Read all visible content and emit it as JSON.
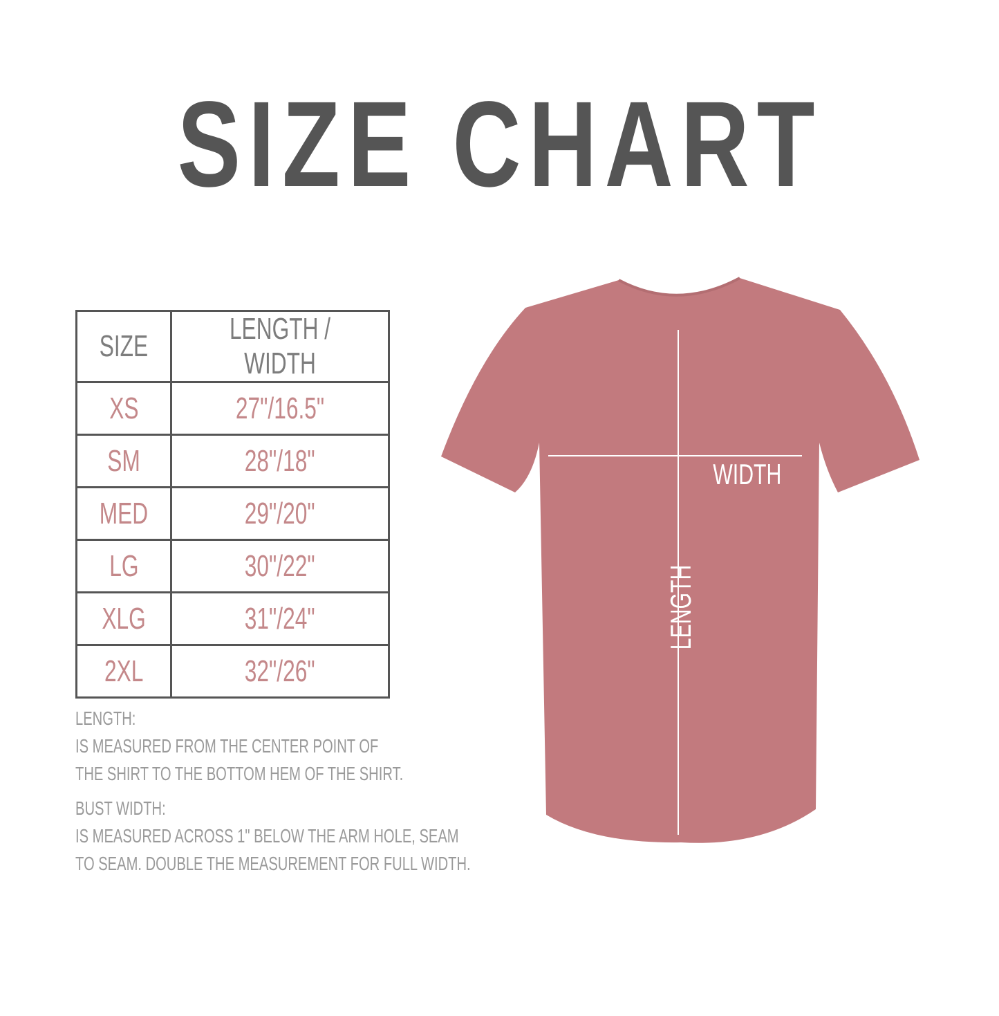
{
  "title": "SIZE CHART",
  "table": {
    "headers": [
      "SIZE",
      "LENGTH / WIDTH"
    ],
    "rows": [
      {
        "size": "XS",
        "measure": "27\"/16.5\""
      },
      {
        "size": "SM",
        "measure": "28\"/18\""
      },
      {
        "size": "MED",
        "measure": "29\"/20\""
      },
      {
        "size": "LG",
        "measure": "30\"/22\""
      },
      {
        "size": "XLG",
        "measure": "31\"/24\""
      },
      {
        "size": "2XL",
        "measure": "32\"/26\""
      }
    ]
  },
  "notes": {
    "length_title": "LENGTH:",
    "length_lines": [
      "IS MEASURED FROM THE CENTER POINT OF",
      "THE SHIRT TO THE BOTTOM HEM OF THE SHIRT."
    ],
    "width_title": "BUST WIDTH:",
    "width_lines": [
      "IS MEASURED ACROSS  1\" BELOW THE ARM HOLE, SEAM",
      "TO SEAM. DOUBLE THE MEASUREMENT FOR FULL WIDTH."
    ]
  },
  "shirt": {
    "width_label": "WIDTH",
    "length_label": "LENGTH",
    "color": "#c27a7e"
  },
  "colors": {
    "title": "#555555",
    "header": "#7d7d7d",
    "size_text": "#c4888a",
    "notes": "#9a9a9a"
  }
}
